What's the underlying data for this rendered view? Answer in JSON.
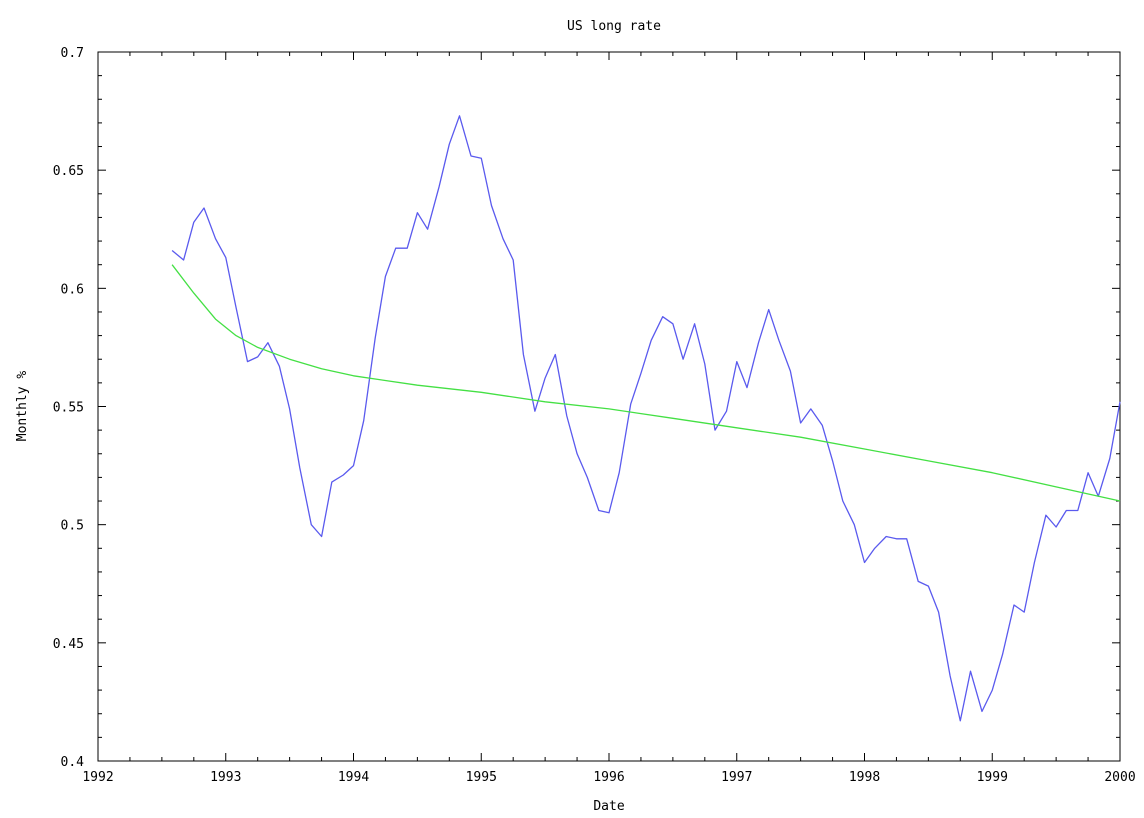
{
  "chart_data": {
    "type": "line",
    "title": "US long  rate",
    "xlabel": "Date",
    "ylabel": "Monthly %",
    "xlim": [
      1992,
      2000
    ],
    "ylim": [
      0.4,
      0.7
    ],
    "x_ticks": [
      "1992",
      "1993",
      "1994",
      "1995",
      "1996",
      "1997",
      "1998",
      "1999",
      "2000"
    ],
    "y_ticks": [
      "0.4",
      "0.45",
      "0.5",
      "0.55",
      "0.6",
      "0.65",
      "0.7"
    ],
    "grid": false,
    "legend": "none",
    "series": [
      {
        "color": "#5a5aee",
        "x": [
          1992.58,
          1992.67,
          1992.75,
          1992.83,
          1992.92,
          1993.0,
          1993.08,
          1993.17,
          1993.25,
          1993.33,
          1993.42,
          1993.5,
          1993.58,
          1993.67,
          1993.75,
          1993.83,
          1993.92,
          1994.0,
          1994.08,
          1994.17,
          1994.25,
          1994.33,
          1994.42,
          1994.5,
          1994.58,
          1994.67,
          1994.75,
          1994.83,
          1994.92,
          1995.0,
          1995.08,
          1995.17,
          1995.25,
          1995.33,
          1995.42,
          1995.5,
          1995.58,
          1995.67,
          1995.75,
          1995.83,
          1995.92,
          1996.0,
          1996.08,
          1996.17,
          1996.25,
          1996.33,
          1996.42,
          1996.5,
          1996.58,
          1996.67,
          1996.75,
          1996.83,
          1996.92,
          1997.0,
          1997.08,
          1997.17,
          1997.25,
          1997.33,
          1997.42,
          1997.5,
          1997.58,
          1997.67,
          1997.75,
          1997.83,
          1997.92,
          1998.0,
          1998.08,
          1998.17,
          1998.25,
          1998.33,
          1998.42,
          1998.5,
          1998.58,
          1998.67,
          1998.75,
          1998.83,
          1998.92,
          1999.0,
          1999.08,
          1999.17,
          1999.25,
          1999.33,
          1999.42,
          1999.5,
          1999.58,
          1999.67,
          1999.75,
          1999.83,
          1999.92,
          2000.0
        ],
        "y": [
          0.616,
          0.612,
          0.628,
          0.634,
          0.621,
          0.613,
          0.592,
          0.569,
          0.571,
          0.577,
          0.567,
          0.549,
          0.524,
          0.5,
          0.495,
          0.518,
          0.521,
          0.525,
          0.544,
          0.579,
          0.605,
          0.617,
          0.617,
          0.632,
          0.625,
          0.643,
          0.661,
          0.673,
          0.656,
          0.655,
          0.635,
          0.621,
          0.612,
          0.572,
          0.548,
          0.562,
          0.572,
          0.546,
          0.53,
          0.52,
          0.506,
          0.505,
          0.522,
          0.551,
          0.564,
          0.578,
          0.588,
          0.585,
          0.57,
          0.585,
          0.568,
          0.54,
          0.548,
          0.569,
          0.558,
          0.577,
          0.591,
          0.578,
          0.565,
          0.543,
          0.549,
          0.542,
          0.527,
          0.51,
          0.5,
          0.484,
          0.49,
          0.495,
          0.494,
          0.494,
          0.476,
          0.474,
          0.463,
          0.436,
          0.417,
          0.438,
          0.421,
          0.43,
          0.445,
          0.466,
          0.463,
          0.484,
          0.504,
          0.499,
          0.506,
          0.506,
          0.522,
          0.512,
          0.528,
          0.552
        ]
      },
      {
        "color": "#44e044",
        "x": [
          1992.58,
          1992.75,
          1992.92,
          1993.08,
          1993.25,
          1993.5,
          1993.75,
          1994.0,
          1994.5,
          1995.0,
          1995.5,
          1996.0,
          1996.5,
          1997.0,
          1997.5,
          1998.0,
          1998.5,
          1999.0,
          1999.5,
          2000.0
        ],
        "y": [
          0.61,
          0.598,
          0.587,
          0.58,
          0.575,
          0.57,
          0.566,
          0.563,
          0.559,
          0.556,
          0.552,
          0.549,
          0.545,
          0.541,
          0.537,
          0.532,
          0.527,
          0.522,
          0.516,
          0.51
        ]
      }
    ]
  }
}
